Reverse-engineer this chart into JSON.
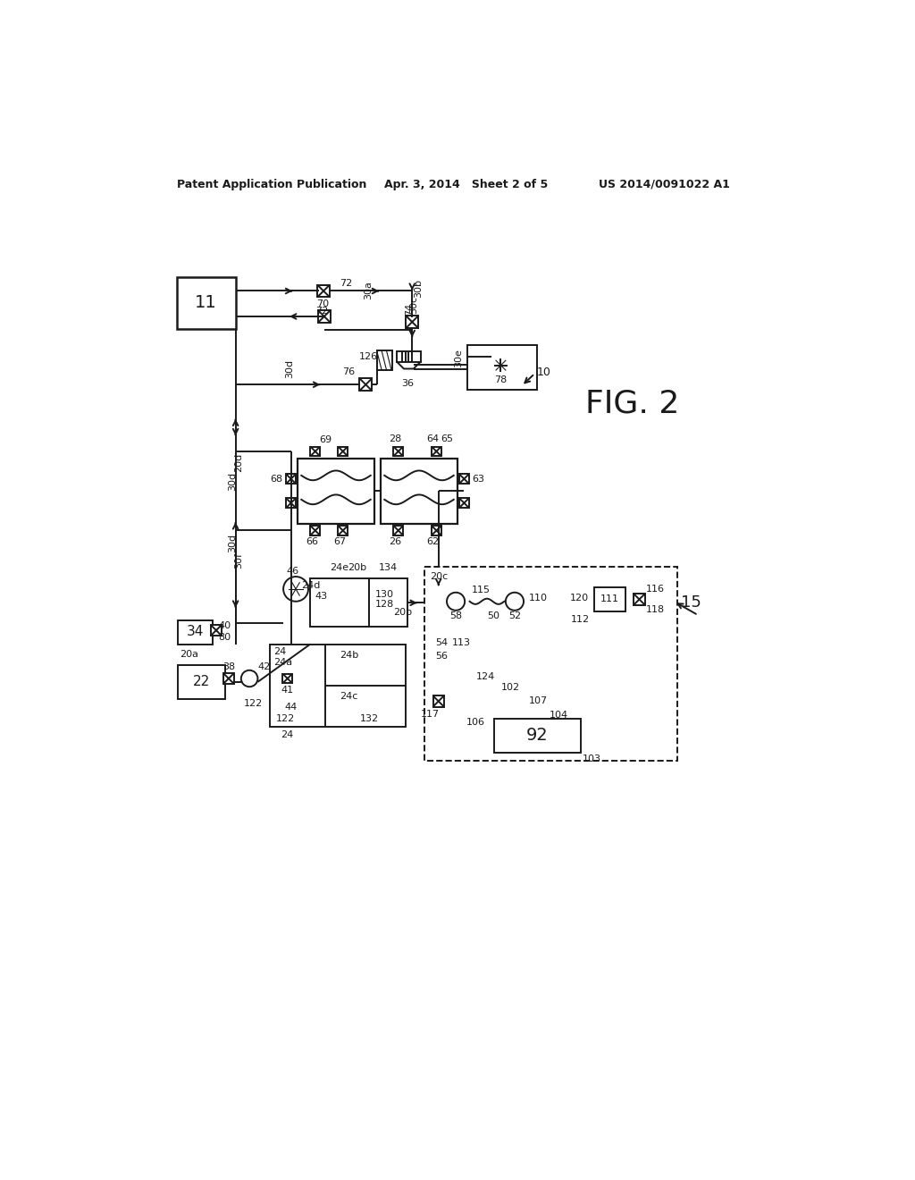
{
  "bg_color": "#ffffff",
  "header_left": "Patent Application Publication",
  "header_mid": "Apr. 3, 2014   Sheet 2 of 5",
  "header_right": "US 2014/0091022 A1",
  "line_color": "#1a1a1a",
  "line_width": 1.4,
  "diagram_scale": 1.0
}
